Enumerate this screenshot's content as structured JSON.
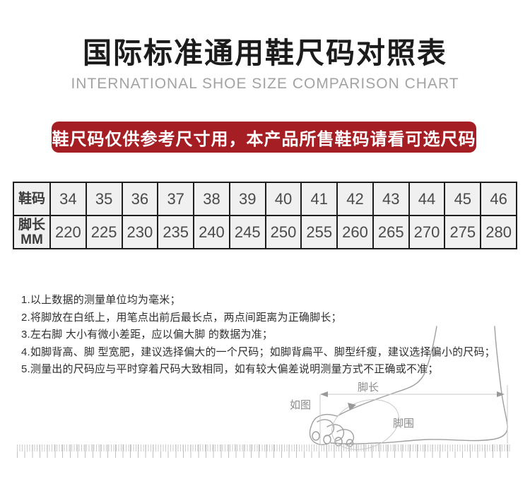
{
  "page": {
    "title": "国际标准通用鞋尺码对照表",
    "subtitle": "INTERNATIONAL SHOE SIZE COMPARISON CHART"
  },
  "banner": {
    "text": "鞋尺码仅供参考尺寸用，本产品所售鞋码请看可选尺码",
    "bg_color": "#a41e23"
  },
  "size_table": {
    "row1_header": "鞋码",
    "row2_header_line1": "脚长",
    "row2_header_line2": "MM",
    "sizes": [
      "34",
      "35",
      "36",
      "37",
      "38",
      "39",
      "40",
      "41",
      "42",
      "43",
      "44",
      "45",
      "46"
    ],
    "foot_lengths_mm": [
      "220",
      "225",
      "230",
      "235",
      "240",
      "245",
      "250",
      "255",
      "260",
      "265",
      "270",
      "275",
      "280"
    ]
  },
  "notes": [
    "1.以上数据的测量单位均为毫米；",
    "2.将脚放在白纸上，用笔点出前后最长点，两点间距离为正确脚长；",
    "3.左右脚 大小有微小差距，应以偏大脚 的数据为准；",
    "4.如脚背高、脚 型宽肥，建议选择偏大的一个尺码；如脚背扁平、脚型纤瘦，建议选择偏小的尺码；",
    "5.测量出的尺码应与平时穿着尺码大致相同，如有较大偏差说明测量方式不正确或不准；"
  ],
  "diagram": {
    "label_as_shown": "如图",
    "label_foot_length": "脚长",
    "label_foot_girth": "脚围"
  },
  "colors": {
    "banner_bg": "#a41e23",
    "table_border": "#1d1d1d",
    "table_cell_bg": "#f0f0f0",
    "illustration_line": "#9f9f9f"
  }
}
